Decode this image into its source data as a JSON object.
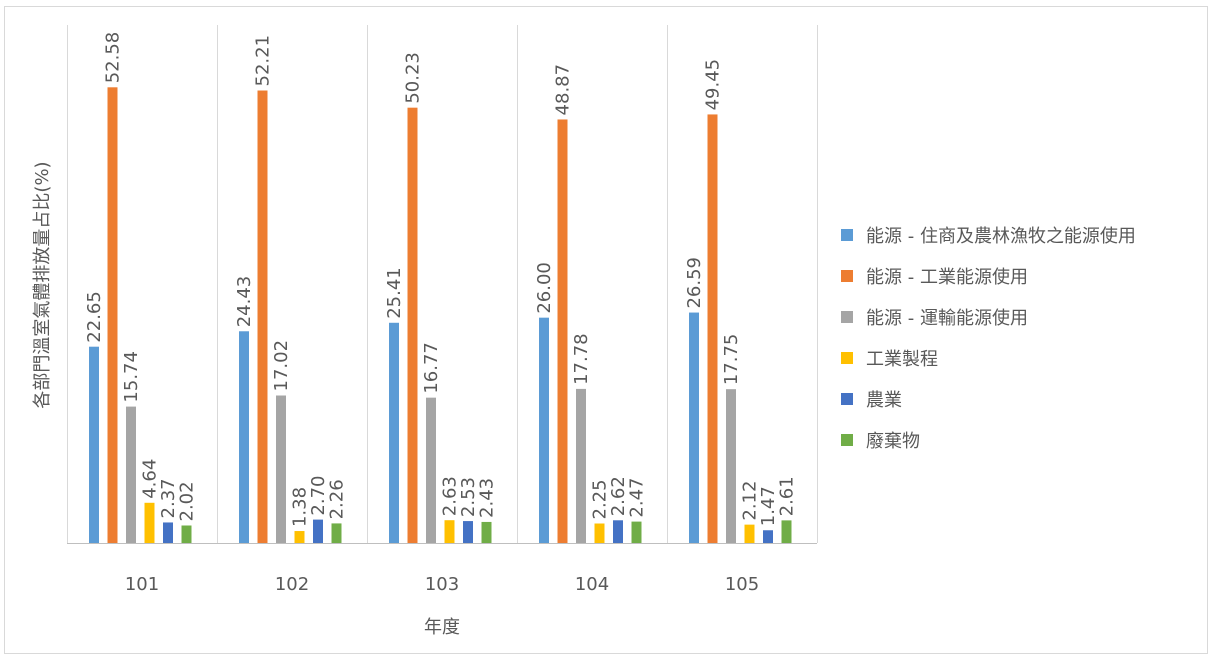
{
  "chart_data": {
    "type": "bar",
    "title": "",
    "xlabel": "年度",
    "ylabel": "各部門溫室氣體排放量占比(%)",
    "categories": [
      "101",
      "102",
      "103",
      "104",
      "105"
    ],
    "ylim": [
      0,
      60
    ],
    "grid": false,
    "legend_position": "right",
    "series": [
      {
        "name": "能源 - 住商及農林漁牧之能源使用",
        "color": "#5b9bd5",
        "values": [
          22.65,
          24.43,
          25.41,
          26.0,
          26.59
        ],
        "labels": [
          "22.65",
          "24.43",
          "25.41",
          "26.00",
          "26.59"
        ]
      },
      {
        "name": "能源 - 工業能源使用",
        "color": "#ed7d31",
        "values": [
          52.58,
          52.21,
          50.23,
          48.87,
          49.45
        ],
        "labels": [
          "52.58",
          "52.21",
          "50.23",
          "48.87",
          "49.45"
        ]
      },
      {
        "name": "能源 - 運輸能源使用",
        "color": "#a5a5a5",
        "values": [
          15.74,
          17.02,
          16.77,
          17.78,
          17.75
        ],
        "labels": [
          "15.74",
          "17.02",
          "16.77",
          "17.78",
          "17.75"
        ]
      },
      {
        "name": "工業製程",
        "color": "#ffc000",
        "values": [
          4.64,
          1.38,
          2.63,
          2.25,
          2.12
        ],
        "labels": [
          "4.64",
          "1.38",
          "2.63",
          "2.25",
          "2.12"
        ]
      },
      {
        "name": "農業",
        "color": "#4472c4",
        "values": [
          2.37,
          2.7,
          2.53,
          2.62,
          1.47
        ],
        "labels": [
          "2.37",
          "2.70",
          "2.53",
          "2.62",
          "1.47"
        ]
      },
      {
        "name": "廢棄物",
        "color": "#70ad47",
        "values": [
          2.02,
          2.26,
          2.43,
          2.47,
          2.61
        ],
        "labels": [
          "2.02",
          "2.26",
          "2.43",
          "2.47",
          "2.61"
        ]
      }
    ]
  }
}
